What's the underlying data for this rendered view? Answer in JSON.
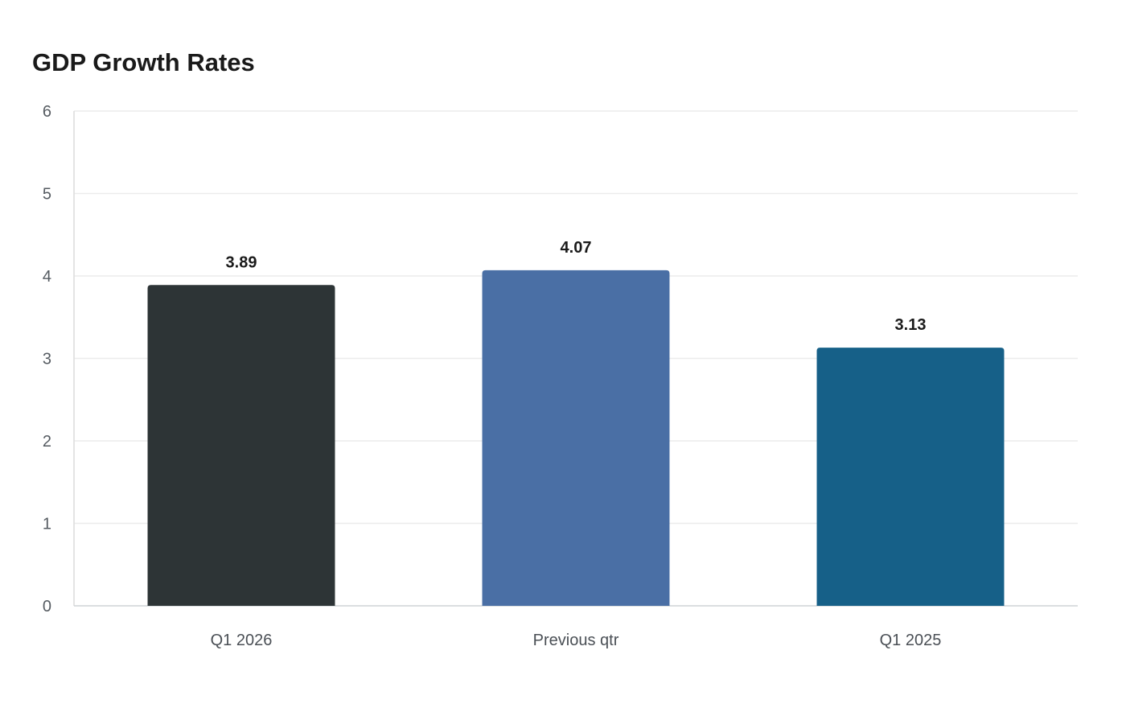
{
  "chart_data": {
    "type": "bar",
    "title": "GDP Growth Rates",
    "xlabel": "",
    "ylabel": "",
    "categories": [
      "Q1 2026",
      "Previous qtr",
      "Q1 2025"
    ],
    "values": [
      3.89,
      4.07,
      3.13
    ],
    "value_labels": [
      "3.89",
      "4.07",
      "3.13"
    ],
    "colors": [
      "#2d3436",
      "#4a6fa5",
      "#166088"
    ],
    "ylim": [
      0,
      6
    ],
    "yticks": [
      0,
      1,
      2,
      3,
      4,
      5,
      6
    ],
    "grid": true,
    "legend": "none"
  }
}
